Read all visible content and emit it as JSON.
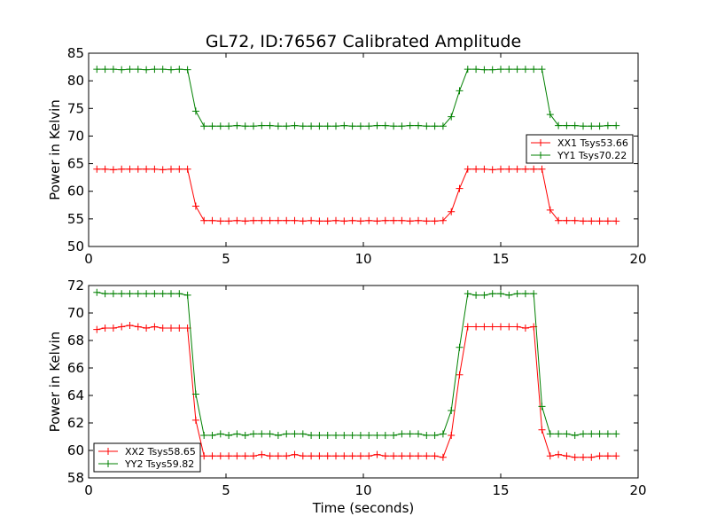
{
  "figure": {
    "title": "GL72, ID:76567 Calibrated Amplitude",
    "xlabel": "Time (seconds)"
  },
  "chart_data": [
    {
      "type": "line",
      "ylabel": "Power in Kelvin",
      "xlim": [
        0,
        20
      ],
      "ylim": [
        50,
        85
      ],
      "xticks": [
        0,
        5,
        10,
        15,
        20
      ],
      "yticks": [
        50,
        55,
        60,
        65,
        70,
        75,
        80,
        85
      ],
      "legend_position": "center-right",
      "show_xlabel": false,
      "x": [
        0.3,
        0.6,
        0.9,
        1.2,
        1.5,
        1.8,
        2.1,
        2.4,
        2.7,
        3.0,
        3.3,
        3.6,
        3.9,
        4.2,
        4.5,
        4.8,
        5.1,
        5.4,
        5.7,
        6.0,
        6.3,
        6.6,
        6.9,
        7.2,
        7.5,
        7.8,
        8.1,
        8.4,
        8.7,
        9.0,
        9.3,
        9.6,
        9.9,
        10.2,
        10.5,
        10.8,
        11.1,
        11.4,
        11.7,
        12.0,
        12.3,
        12.6,
        12.9,
        13.2,
        13.5,
        13.8,
        14.1,
        14.4,
        14.7,
        15.0,
        15.3,
        15.6,
        15.9,
        16.2,
        16.5,
        16.8,
        17.1,
        17.4,
        17.7,
        18.0,
        18.3,
        18.6,
        18.9,
        19.2
      ],
      "series": [
        {
          "name": "XX1 Tsys53.66",
          "color": "#ff0000",
          "values": [
            64.0,
            64.0,
            63.9,
            64.0,
            64.0,
            64.0,
            64.0,
            64.0,
            63.9,
            64.0,
            64.0,
            64.0,
            57.3,
            54.7,
            54.7,
            54.6,
            54.6,
            54.7,
            54.6,
            54.7,
            54.7,
            54.7,
            54.7,
            54.7,
            54.7,
            54.6,
            54.7,
            54.6,
            54.6,
            54.7,
            54.6,
            54.7,
            54.6,
            54.7,
            54.6,
            54.7,
            54.7,
            54.7,
            54.6,
            54.7,
            54.6,
            54.6,
            54.7,
            56.3,
            60.5,
            64.0,
            64.0,
            64.0,
            63.9,
            64.0,
            64.0,
            64.0,
            64.0,
            64.0,
            64.0,
            56.6,
            54.7,
            54.7,
            54.7,
            54.6,
            54.6,
            54.6,
            54.6,
            54.6
          ]
        },
        {
          "name": "YY1 Tsys70.22",
          "color": "#008000",
          "values": [
            82.1,
            82.1,
            82.1,
            82.0,
            82.1,
            82.1,
            82.0,
            82.1,
            82.1,
            82.0,
            82.1,
            82.0,
            74.5,
            71.8,
            71.8,
            71.8,
            71.8,
            71.9,
            71.8,
            71.8,
            71.9,
            71.9,
            71.8,
            71.8,
            71.9,
            71.8,
            71.8,
            71.8,
            71.8,
            71.8,
            71.9,
            71.8,
            71.8,
            71.8,
            71.9,
            71.9,
            71.8,
            71.8,
            71.9,
            71.9,
            71.8,
            71.8,
            71.8,
            73.5,
            78.2,
            82.1,
            82.1,
            82.0,
            82.0,
            82.1,
            82.1,
            82.1,
            82.1,
            82.1,
            82.1,
            73.9,
            71.9,
            71.9,
            71.9,
            71.8,
            71.8,
            71.8,
            71.9,
            71.9
          ]
        }
      ]
    },
    {
      "type": "line",
      "ylabel": "Power in Kelvin",
      "xlim": [
        0,
        20
      ],
      "ylim": [
        58,
        72
      ],
      "xticks": [
        0,
        5,
        10,
        15,
        20
      ],
      "yticks": [
        58,
        60,
        62,
        64,
        66,
        68,
        70,
        72
      ],
      "legend_position": "lower-left",
      "show_xlabel": true,
      "x": [
        0.3,
        0.6,
        0.9,
        1.2,
        1.5,
        1.8,
        2.1,
        2.4,
        2.7,
        3.0,
        3.3,
        3.6,
        3.9,
        4.2,
        4.5,
        4.8,
        5.1,
        5.4,
        5.7,
        6.0,
        6.3,
        6.6,
        6.9,
        7.2,
        7.5,
        7.8,
        8.1,
        8.4,
        8.7,
        9.0,
        9.3,
        9.6,
        9.9,
        10.2,
        10.5,
        10.8,
        11.1,
        11.4,
        11.7,
        12.0,
        12.3,
        12.6,
        12.9,
        13.2,
        13.5,
        13.8,
        14.1,
        14.4,
        14.7,
        15.0,
        15.3,
        15.6,
        15.9,
        16.2,
        16.5,
        16.8,
        17.1,
        17.4,
        17.7,
        18.0,
        18.3,
        18.6,
        18.9,
        19.2
      ],
      "series": [
        {
          "name": "XX2 Tsys58.65",
          "color": "#ff0000",
          "values": [
            68.8,
            68.9,
            68.9,
            69.0,
            69.1,
            69.0,
            68.9,
            69.0,
            68.9,
            68.9,
            68.9,
            68.9,
            62.2,
            59.6,
            59.6,
            59.6,
            59.6,
            59.6,
            59.6,
            59.6,
            59.7,
            59.6,
            59.6,
            59.6,
            59.7,
            59.6,
            59.6,
            59.6,
            59.6,
            59.6,
            59.6,
            59.6,
            59.6,
            59.6,
            59.7,
            59.6,
            59.6,
            59.6,
            59.6,
            59.6,
            59.6,
            59.6,
            59.5,
            61.1,
            65.5,
            69.0,
            69.0,
            69.0,
            69.0,
            69.0,
            69.0,
            69.0,
            68.9,
            69.0,
            61.5,
            59.6,
            59.7,
            59.6,
            59.5,
            59.5,
            59.5,
            59.6,
            59.6,
            59.6
          ]
        },
        {
          "name": "YY2 Tsys59.82",
          "color": "#008000",
          "values": [
            71.5,
            71.4,
            71.4,
            71.4,
            71.4,
            71.4,
            71.4,
            71.4,
            71.4,
            71.4,
            71.4,
            71.3,
            64.1,
            61.1,
            61.1,
            61.2,
            61.1,
            61.2,
            61.1,
            61.2,
            61.2,
            61.2,
            61.1,
            61.2,
            61.2,
            61.2,
            61.1,
            61.1,
            61.1,
            61.1,
            61.1,
            61.1,
            61.1,
            61.1,
            61.1,
            61.1,
            61.1,
            61.2,
            61.2,
            61.2,
            61.1,
            61.1,
            61.2,
            62.9,
            67.5,
            71.4,
            71.3,
            71.3,
            71.4,
            71.4,
            71.3,
            71.4,
            71.4,
            71.4,
            63.2,
            61.2,
            61.2,
            61.2,
            61.1,
            61.2,
            61.2,
            61.2,
            61.2,
            61.2
          ]
        }
      ]
    }
  ]
}
